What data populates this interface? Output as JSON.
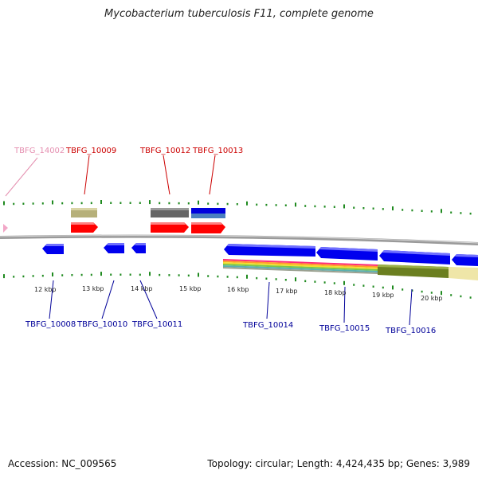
{
  "title": "Mycobacterium tuberculosis F11, complete genome",
  "footer": {
    "accession": "Accession: NC_009565",
    "genome_info": "Topology: circular; Length: 4,424,435 bp; Genes: 3,989"
  },
  "colors": {
    "backbone": "#8a8a8a",
    "tick": "#1f8a1f",
    "forward_gene": "#ff0000",
    "reverse_gene": "#0000ee",
    "label_forward": "#cc0000",
    "label_reverse": "#000099",
    "label_pseudo": "#e58fb0",
    "band_khaki": "#b6b07a",
    "band_gray": "#666666",
    "band_blue": "#0000dd",
    "band_steel": "#4a7fc0",
    "band_olive": "#6b7f20",
    "band_yellow": "#efe6a8"
  },
  "kbp_labels": [
    "12 kbp",
    "13 kbp",
    "14 kbp",
    "15 kbp",
    "16 kbp",
    "17 kbp",
    "18 kbp",
    "19 kbp",
    "20 kbp"
  ],
  "gene_labels_top": [
    {
      "text": "TBFG_14002",
      "color": "#e58fb0"
    },
    {
      "text": "TBFG_10009",
      "color": "#cc0000"
    },
    {
      "text": "TBFG_10012",
      "color": "#cc0000"
    },
    {
      "text": "TBFG_10013",
      "color": "#cc0000"
    }
  ],
  "gene_labels_bottom": [
    {
      "text": "TBFG_10008",
      "color": "#000099"
    },
    {
      "text": "TBFG_10010",
      "color": "#000099"
    },
    {
      "text": "TBFG_10011",
      "color": "#000099"
    },
    {
      "text": "TBFG_10014",
      "color": "#000099"
    },
    {
      "text": "TBFG_10015",
      "color": "#000099"
    },
    {
      "text": "TBFG_10016",
      "color": "#000099"
    }
  ]
}
